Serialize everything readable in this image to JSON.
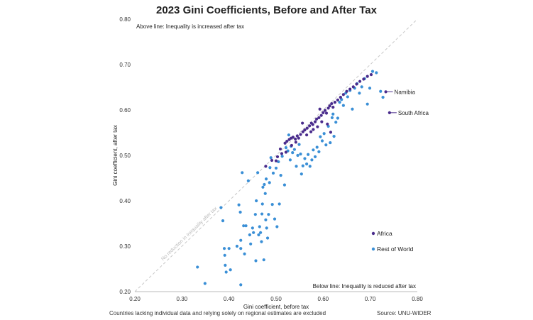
{
  "title": "2023 Gini Coefficients, Before and After Tax",
  "footnote": "Countries lacking individual data and relying solely on regional estimates are excluded",
  "source": "Source: UNU-WIDER",
  "colors": {
    "africa": "#4a2c8c",
    "rest": "#3a8fd6",
    "diagonal": "#c8c8c8",
    "axis": "#bbbbbb"
  },
  "chart_data": {
    "type": "scatter",
    "title": "2023 Gini Coefficients, Before and After Tax",
    "xlabel": "Gini coefficient, before tax",
    "ylabel": "Gini coefficient, after tax",
    "xlim": [
      0.2,
      0.8
    ],
    "ylim": [
      0.2,
      0.8
    ],
    "x_ticks": [
      "0.20",
      "0.30",
      "0.40",
      "0.50",
      "0.60",
      "0.70",
      "0.80"
    ],
    "y_ticks": [
      "0.20",
      "0.30",
      "0.40",
      "0.50",
      "0.60",
      "0.70",
      "0.80"
    ],
    "grid": false,
    "legend_position": "bottom-right",
    "diagonal_label": "No reduction in inequality after tax",
    "annotations": {
      "above": "Above line: Inequality is increased after tax",
      "below": "Below line: Inequality is reduced after tax"
    },
    "labeled_points": [
      {
        "label": "Namibia",
        "x": 0.733,
        "y": 0.64
      },
      {
        "label": "South Africa",
        "x": 0.741,
        "y": 0.594
      }
    ],
    "series": [
      {
        "name": "Africa",
        "color": "#4a2c8c",
        "points": [
          [
            0.478,
            0.476
          ],
          [
            0.491,
            0.489
          ],
          [
            0.503,
            0.497
          ],
          [
            0.509,
            0.514
          ],
          [
            0.519,
            0.527
          ],
          [
            0.523,
            0.531
          ],
          [
            0.528,
            0.535
          ],
          [
            0.532,
            0.538
          ],
          [
            0.536,
            0.54
          ],
          [
            0.541,
            0.536
          ],
          [
            0.545,
            0.543
          ],
          [
            0.548,
            0.538
          ],
          [
            0.552,
            0.546
          ],
          [
            0.557,
            0.552
          ],
          [
            0.561,
            0.556
          ],
          [
            0.566,
            0.56
          ],
          [
            0.571,
            0.565
          ],
          [
            0.575,
            0.571
          ],
          [
            0.578,
            0.568
          ],
          [
            0.583,
            0.574
          ],
          [
            0.586,
            0.58
          ],
          [
            0.591,
            0.583
          ],
          [
            0.596,
            0.588
          ],
          [
            0.6,
            0.594
          ],
          [
            0.604,
            0.599
          ],
          [
            0.607,
            0.593
          ],
          [
            0.611,
            0.604
          ],
          [
            0.614,
            0.609
          ],
          [
            0.618,
            0.614
          ],
          [
            0.621,
            0.606
          ],
          [
            0.625,
            0.617
          ],
          [
            0.631,
            0.622
          ],
          [
            0.637,
            0.628
          ],
          [
            0.643,
            0.634
          ],
          [
            0.65,
            0.641
          ],
          [
            0.657,
            0.646
          ],
          [
            0.664,
            0.651
          ],
          [
            0.671,
            0.657
          ],
          [
            0.678,
            0.663
          ],
          [
            0.686,
            0.668
          ],
          [
            0.694,
            0.674
          ],
          [
            0.702,
            0.678
          ],
          [
            0.588,
            0.563
          ],
          [
            0.597,
            0.574
          ],
          [
            0.609,
            0.569
          ],
          [
            0.616,
            0.551
          ],
          [
            0.574,
            0.552
          ],
          [
            0.556,
            0.571
          ],
          [
            0.542,
            0.529
          ],
          [
            0.533,
            0.522
          ],
          [
            0.521,
            0.507
          ],
          [
            0.512,
            0.504
          ],
          [
            0.5,
            0.488
          ],
          [
            0.565,
            0.545
          ],
          [
            0.579,
            0.557
          ],
          [
            0.593,
            0.602
          ],
          [
            0.733,
            0.64
          ],
          [
            0.741,
            0.594
          ]
        ]
      },
      {
        "name": "Rest of World",
        "color": "#3a8fd6",
        "points": [
          [
            0.333,
            0.254
          ],
          [
            0.349,
            0.218
          ],
          [
            0.383,
            0.385
          ],
          [
            0.387,
            0.356
          ],
          [
            0.39,
            0.295
          ],
          [
            0.391,
            0.28
          ],
          [
            0.392,
            0.258
          ],
          [
            0.394,
            0.243
          ],
          [
            0.4,
            0.295
          ],
          [
            0.403,
            0.248
          ],
          [
            0.417,
            0.3
          ],
          [
            0.421,
            0.391
          ],
          [
            0.424,
            0.375
          ],
          [
            0.425,
            0.313
          ],
          [
            0.425,
            0.295
          ],
          [
            0.425,
            0.215
          ],
          [
            0.428,
            0.462
          ],
          [
            0.431,
            0.345
          ],
          [
            0.433,
            0.283
          ],
          [
            0.436,
            0.345
          ],
          [
            0.441,
            0.444
          ],
          [
            0.444,
            0.325
          ],
          [
            0.446,
            0.305
          ],
          [
            0.45,
            0.34
          ],
          [
            0.452,
            0.33
          ],
          [
            0.456,
            0.37
          ],
          [
            0.457,
            0.268
          ],
          [
            0.458,
            0.4
          ],
          [
            0.461,
            0.462
          ],
          [
            0.463,
            0.325
          ],
          [
            0.465,
            0.343
          ],
          [
            0.467,
            0.33
          ],
          [
            0.469,
            0.31
          ],
          [
            0.47,
            0.371
          ],
          [
            0.471,
            0.393
          ],
          [
            0.472,
            0.43
          ],
          [
            0.474,
            0.27
          ],
          [
            0.475,
            0.436
          ],
          [
            0.477,
            0.416
          ],
          [
            0.478,
            0.358
          ],
          [
            0.479,
            0.448
          ],
          [
            0.48,
            0.34
          ],
          [
            0.482,
            0.318
          ],
          [
            0.484,
            0.37
          ],
          [
            0.486,
            0.44
          ],
          [
            0.487,
            0.473
          ],
          [
            0.489,
            0.495
          ],
          [
            0.492,
            0.392
          ],
          [
            0.494,
            0.461
          ],
          [
            0.497,
            0.36
          ],
          [
            0.5,
            0.472
          ],
          [
            0.502,
            0.343
          ],
          [
            0.505,
            0.486
          ],
          [
            0.507,
            0.393
          ],
          [
            0.51,
            0.456
          ],
          [
            0.513,
            0.498
          ],
          [
            0.518,
            0.435
          ],
          [
            0.521,
            0.517
          ],
          [
            0.525,
            0.51
          ],
          [
            0.527,
            0.545
          ],
          [
            0.53,
            0.49
          ],
          [
            0.532,
            0.52
          ],
          [
            0.535,
            0.506
          ],
          [
            0.539,
            0.513
          ],
          [
            0.543,
            0.476
          ],
          [
            0.546,
            0.5
          ],
          [
            0.549,
            0.524
          ],
          [
            0.552,
            0.503
          ],
          [
            0.554,
            0.459
          ],
          [
            0.557,
            0.477
          ],
          [
            0.561,
            0.493
          ],
          [
            0.565,
            0.481
          ],
          [
            0.568,
            0.502
          ],
          [
            0.572,
            0.476
          ],
          [
            0.576,
            0.49
          ],
          [
            0.579,
            0.512
          ],
          [
            0.583,
            0.497
          ],
          [
            0.587,
            0.518
          ],
          [
            0.591,
            0.508
          ],
          [
            0.594,
            0.541
          ],
          [
            0.598,
            0.532
          ],
          [
            0.602,
            0.548
          ],
          [
            0.606,
            0.523
          ],
          [
            0.611,
            0.564
          ],
          [
            0.615,
            0.528
          ],
          [
            0.619,
            0.583
          ],
          [
            0.623,
            0.542
          ],
          [
            0.627,
            0.573
          ],
          [
            0.631,
            0.582
          ],
          [
            0.635,
            0.617
          ],
          [
            0.639,
            0.623
          ],
          [
            0.643,
            0.61
          ],
          [
            0.648,
            0.637
          ],
          [
            0.652,
            0.629
          ],
          [
            0.657,
            0.643
          ],
          [
            0.662,
            0.602
          ],
          [
            0.667,
            0.648
          ],
          [
            0.672,
            0.658
          ],
          [
            0.677,
            0.637
          ],
          [
            0.682,
            0.651
          ],
          [
            0.688,
            0.669
          ],
          [
            0.694,
            0.613
          ],
          [
            0.699,
            0.648
          ],
          [
            0.705,
            0.685
          ],
          [
            0.713,
            0.682
          ],
          [
            0.722,
            0.641
          ],
          [
            0.727,
            0.628
          ],
          [
            0.621,
            0.591
          ]
        ]
      }
    ]
  }
}
